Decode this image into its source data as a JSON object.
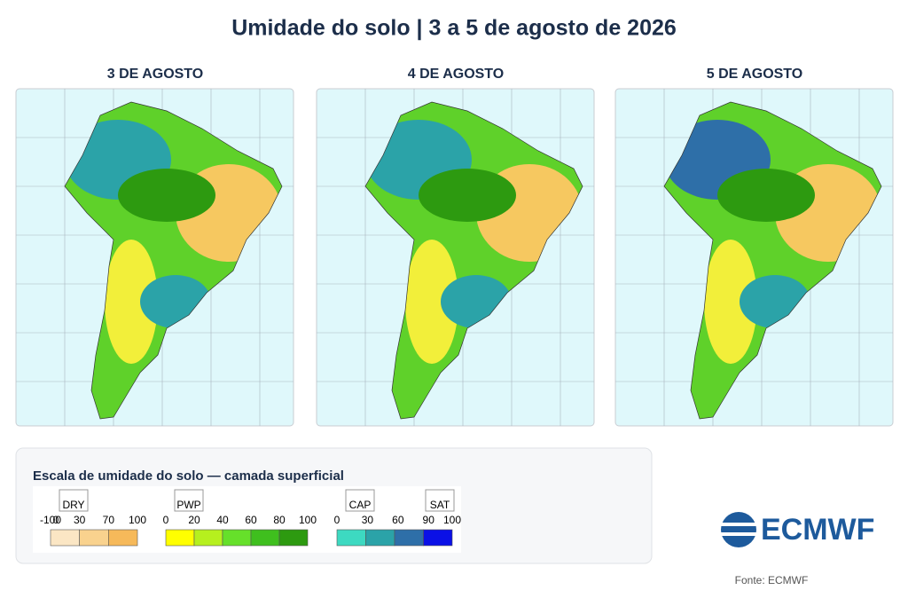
{
  "header": {
    "title": "Umidade do solo | 3 a 5 de agosto de 2026"
  },
  "panels": [
    {
      "label": "3 DE AGOSTO"
    },
    {
      "label": "4 DE AGOSTO"
    },
    {
      "label": "5 DE AGOSTO"
    }
  ],
  "legend": {
    "title": "Escala de umidade do solo — camada superficial",
    "groups": [
      {
        "label": "DRY",
        "ticks": [
          "-100",
          "0",
          "30",
          "70",
          "100"
        ],
        "colors": [
          "#fbe6c4",
          "#f9d28e",
          "#f6b95a"
        ]
      },
      {
        "label": "PWP",
        "ticks": [
          "0",
          "20",
          "40",
          "60",
          "80",
          "100"
        ],
        "colors": [
          "#ffff00",
          "#b6f01e",
          "#66e02a",
          "#3fbf1e",
          "#2d9a10"
        ]
      },
      {
        "label": "CAP",
        "ticks": [
          "0",
          "30",
          "60",
          "90",
          "100"
        ],
        "colors": [
          "#3dd9c1",
          "#2ba3a8",
          "#2e6fa8",
          "#0b10e6"
        ]
      },
      {
        "label": "SAT",
        "ticks": [],
        "colors": []
      }
    ]
  },
  "logo": {
    "text": "ECMWF"
  },
  "footer": {
    "source": "Fonte: ECMWF"
  }
}
